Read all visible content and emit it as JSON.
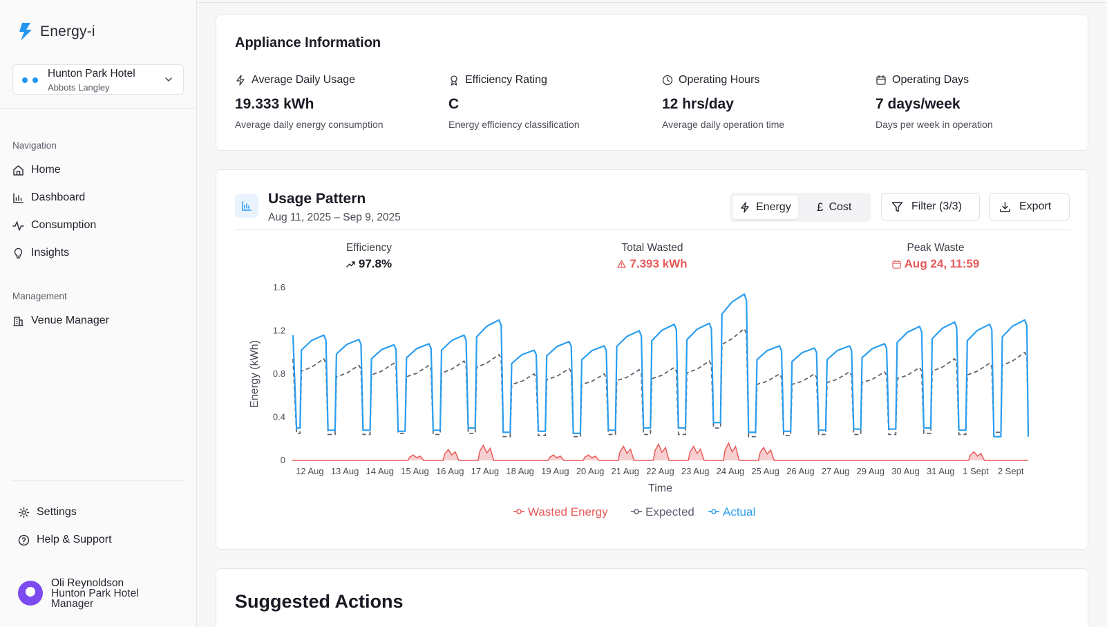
{
  "app": {
    "logo_text": "Energy-i"
  },
  "venue": {
    "name": "Hunton Park Hotel",
    "location": "Abbots Langley"
  },
  "navigation": {
    "label": "Navigation",
    "items": [
      {
        "label": "Home",
        "icon": "home-icon"
      },
      {
        "label": "Dashboard",
        "icon": "bar-chart-icon"
      },
      {
        "label": "Consumption",
        "icon": "activity-icon"
      },
      {
        "label": "Insights",
        "icon": "lightbulb-icon"
      }
    ]
  },
  "management": {
    "label": "Management",
    "items": [
      {
        "label": "Venue Manager",
        "icon": "building-icon"
      }
    ]
  },
  "footer_nav": [
    {
      "label": "Settings",
      "icon": "gear-icon"
    },
    {
      "label": "Help & Support",
      "icon": "help-icon"
    }
  ],
  "user": {
    "name": "Oli Reynoldson",
    "org": "Hunton Park Hotel",
    "role": "Manager"
  },
  "appliance": {
    "title": "Appliance Information",
    "stats": [
      {
        "label": "Average Daily Usage",
        "value": "19.333 kWh",
        "desc": "Average daily energy consumption",
        "icon": "lightning-icon"
      },
      {
        "label": "Efficiency Rating",
        "value": "C",
        "desc": "Energy efficiency classification",
        "icon": "award-icon"
      },
      {
        "label": "Operating Hours",
        "value": "12 hrs/day",
        "desc": "Average daily operation time",
        "icon": "clock-icon"
      },
      {
        "label": "Operating Days",
        "value": "7 days/week",
        "desc": "Days per week in operation",
        "icon": "calendar-icon"
      }
    ]
  },
  "usage": {
    "title": "Usage Pattern",
    "range": "Aug 11, 2025 – Sep 9, 2025",
    "toggle": {
      "energy": "Energy",
      "cost": "Cost"
    },
    "filter": "Filter (3/3)",
    "export": "Export",
    "kpis": {
      "efficiency": {
        "label": "Efficiency",
        "value": "97.8%"
      },
      "wasted": {
        "label": "Total Wasted",
        "value": "7.393 kWh"
      },
      "peak": {
        "label": "Peak Waste",
        "value": "Aug 24, 11:59"
      }
    }
  },
  "suggested": {
    "title": "Suggested Actions"
  },
  "colors": {
    "actual": "#2b9ef0",
    "expected": "#5d6470",
    "wasted": "#e85a5a",
    "accent": "#2196f3"
  },
  "chart_data": {
    "type": "line",
    "xlabel": "Time",
    "ylabel": "Energy (kWh)",
    "ylim": [
      0,
      1.6
    ],
    "yticks": [
      0,
      0.4,
      0.8,
      1.2,
      1.6
    ],
    "legend_position": "bottom",
    "grid": false,
    "categories": [
      "12 Aug",
      "13 Aug",
      "14 Aug",
      "15 Aug",
      "16 Aug",
      "17 Aug",
      "18 Aug",
      "19 Aug",
      "20 Aug",
      "21 Aug",
      "22 Aug",
      "23 Aug",
      "24 Aug",
      "25 Aug",
      "26 Aug",
      "27 Aug",
      "29 Aug",
      "30 Aug",
      "31 Aug",
      "1 Sept",
      "2 Sept"
    ],
    "series": [
      {
        "name": "Wasted Energy",
        "color": "#e85a5a",
        "values": [
          0,
          0,
          0,
          0.05,
          0.1,
          0.14,
          0,
          0.05,
          0.05,
          0.13,
          0.15,
          0.13,
          0.16,
          0.12,
          0,
          0,
          0,
          0,
          0,
          0.08,
          0
        ]
      },
      {
        "name": "Expected",
        "color": "#5d6470",
        "day_values": [
          0.94,
          0.88,
          0.9,
          0.88,
          0.92,
          0.98,
          0.8,
          0.85,
          0.8,
          0.84,
          0.86,
          0.92,
          1.22,
          0.8,
          0.8,
          0.82,
          0.82,
          0.86,
          0.94,
          0.9,
          1.0
        ],
        "night_values": [
          0.25,
          0.24,
          0.24,
          0.25,
          0.24,
          0.25,
          0.22,
          0.23,
          0.22,
          0.24,
          0.24,
          0.24,
          0.3,
          0.22,
          0.23,
          0.24,
          0.24,
          0.24,
          0.25,
          0.24,
          0.26
        ]
      },
      {
        "name": "Actual",
        "color": "#2b9ef0",
        "day_values": [
          1.16,
          1.12,
          1.07,
          1.08,
          1.16,
          1.3,
          1.02,
          1.1,
          1.06,
          1.2,
          1.26,
          1.27,
          1.54,
          1.06,
          1.04,
          1.06,
          1.08,
          1.24,
          1.28,
          1.26,
          1.3
        ],
        "night_values": [
          0.3,
          0.28,
          0.28,
          0.27,
          0.28,
          0.3,
          0.26,
          0.27,
          0.25,
          0.28,
          0.3,
          0.3,
          0.35,
          0.26,
          0.27,
          0.28,
          0.29,
          0.29,
          0.3,
          0.28,
          0.22
        ]
      }
    ]
  }
}
